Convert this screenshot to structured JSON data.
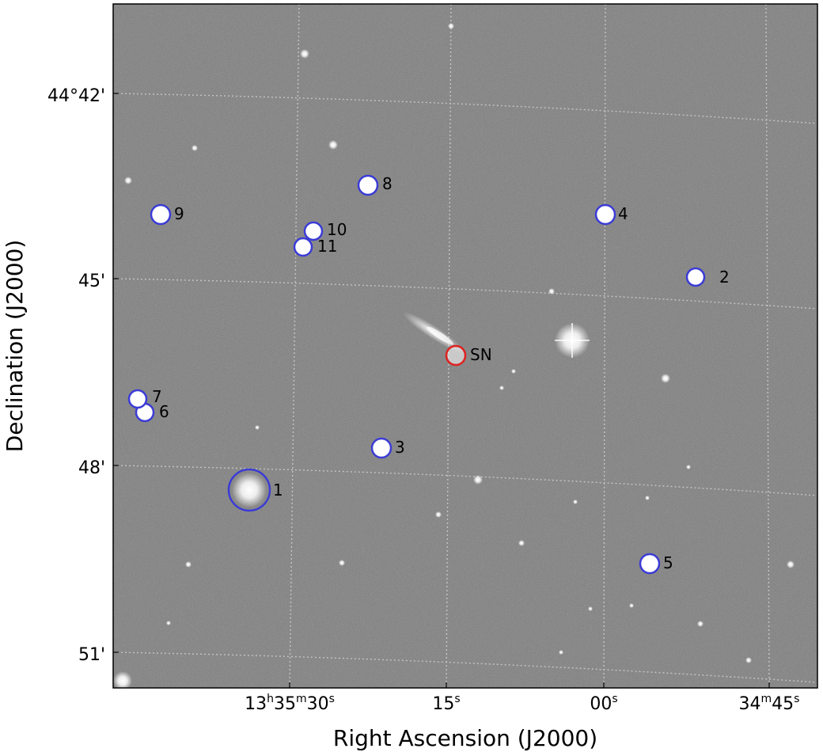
{
  "axes": {
    "xlabel": "Right Ascension (J2000)",
    "ylabel": "Declination (J2000)",
    "x_ticks": [
      {
        "main": "13",
        "u1": "h",
        "m": "35",
        "u2": "m",
        "s": "30",
        "u3": "s"
      },
      {
        "main": "",
        "u1": "",
        "m": "",
        "u2": "",
        "s": "15",
        "u3": "s"
      },
      {
        "main": "",
        "u1": "",
        "m": "",
        "u2": "",
        "s": "00",
        "u3": "s"
      },
      {
        "main": "",
        "u1": "",
        "m": "34",
        "u2": "m",
        "s": "45",
        "u3": "s"
      }
    ],
    "y_ticks": [
      "44°42'",
      "45'",
      "48'",
      "51'"
    ]
  },
  "markers": [
    {
      "label": "1",
      "color": "#3b3bd6"
    },
    {
      "label": "2",
      "color": "#3b3bd6"
    },
    {
      "label": "3",
      "color": "#3b3bd6"
    },
    {
      "label": "4",
      "color": "#3b3bd6"
    },
    {
      "label": "5",
      "color": "#3b3bd6"
    },
    {
      "label": "6",
      "color": "#3b3bd6"
    },
    {
      "label": "7",
      "color": "#3b3bd6"
    },
    {
      "label": "8",
      "color": "#3b3bd6"
    },
    {
      "label": "9",
      "color": "#3b3bd6"
    },
    {
      "label": "10",
      "color": "#3b3bd6"
    },
    {
      "label": "11",
      "color": "#3b3bd6"
    },
    {
      "label": "SN",
      "color": "#e02020"
    }
  ],
  "colors": {
    "sky": "#767676",
    "grid": "#d8d8d8",
    "star": "#ffffff"
  }
}
